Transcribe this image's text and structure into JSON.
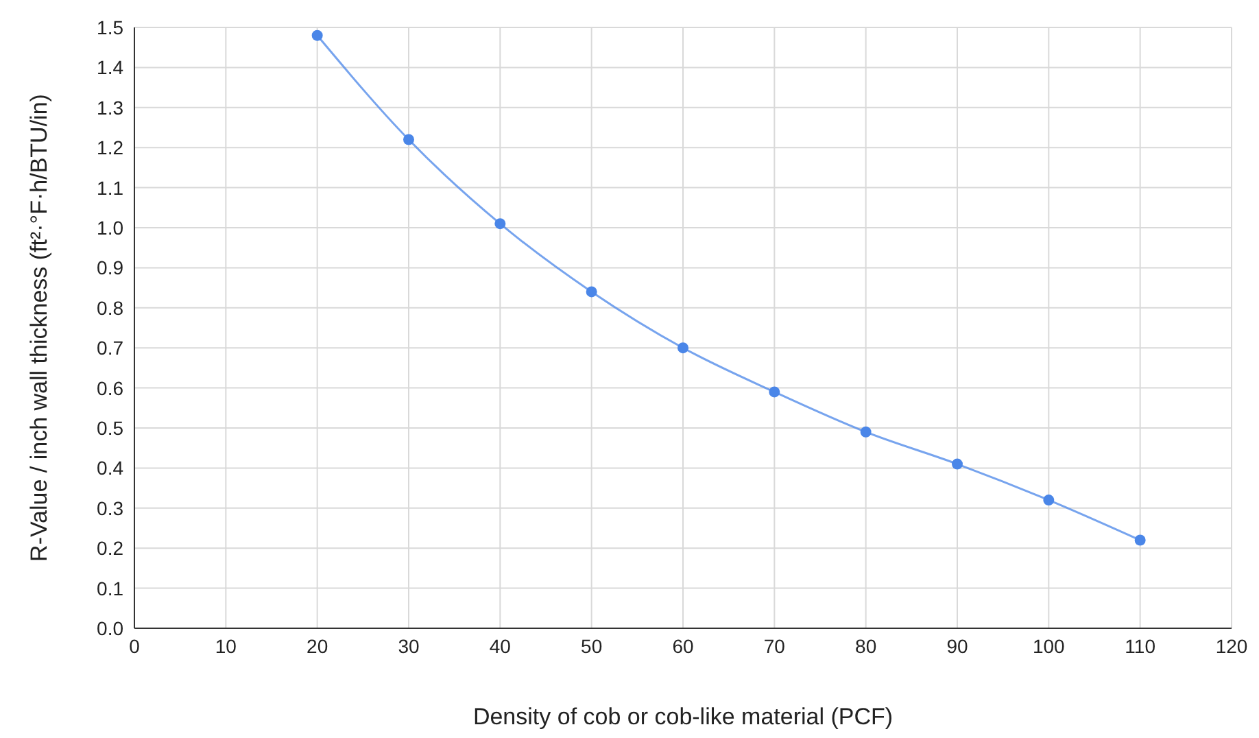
{
  "chart_data": {
    "type": "line",
    "xlabel": "Density of cob or cob-like material (PCF)",
    "ylabel": "R-Value / inch wall thickness (ft²·°F·h/BTU/in)",
    "x": [
      20,
      30,
      40,
      50,
      60,
      70,
      80,
      90,
      100,
      110
    ],
    "series": [
      {
        "color": "#4a86e8",
        "values": [
          1.48,
          1.22,
          1.01,
          0.84,
          0.7,
          0.59,
          0.49,
          0.41,
          0.32,
          0.22
        ]
      }
    ],
    "xlim": [
      0,
      120
    ],
    "xticks": [
      0,
      10,
      20,
      30,
      40,
      50,
      60,
      70,
      80,
      90,
      100,
      110,
      120
    ],
    "ylim": [
      0,
      1.5
    ],
    "yticks": [
      {
        "value": 0,
        "label": "0.0"
      },
      0.1,
      0.2,
      0.3,
      0.4,
      0.5,
      0.6,
      0.7,
      0.8,
      0.9,
      {
        "value": 1,
        "label": "1.0"
      },
      1.1,
      1.2,
      1.3,
      1.4,
      1.5
    ],
    "grid": true,
    "marker": "circle",
    "line_style": "solid",
    "legend": false
  }
}
